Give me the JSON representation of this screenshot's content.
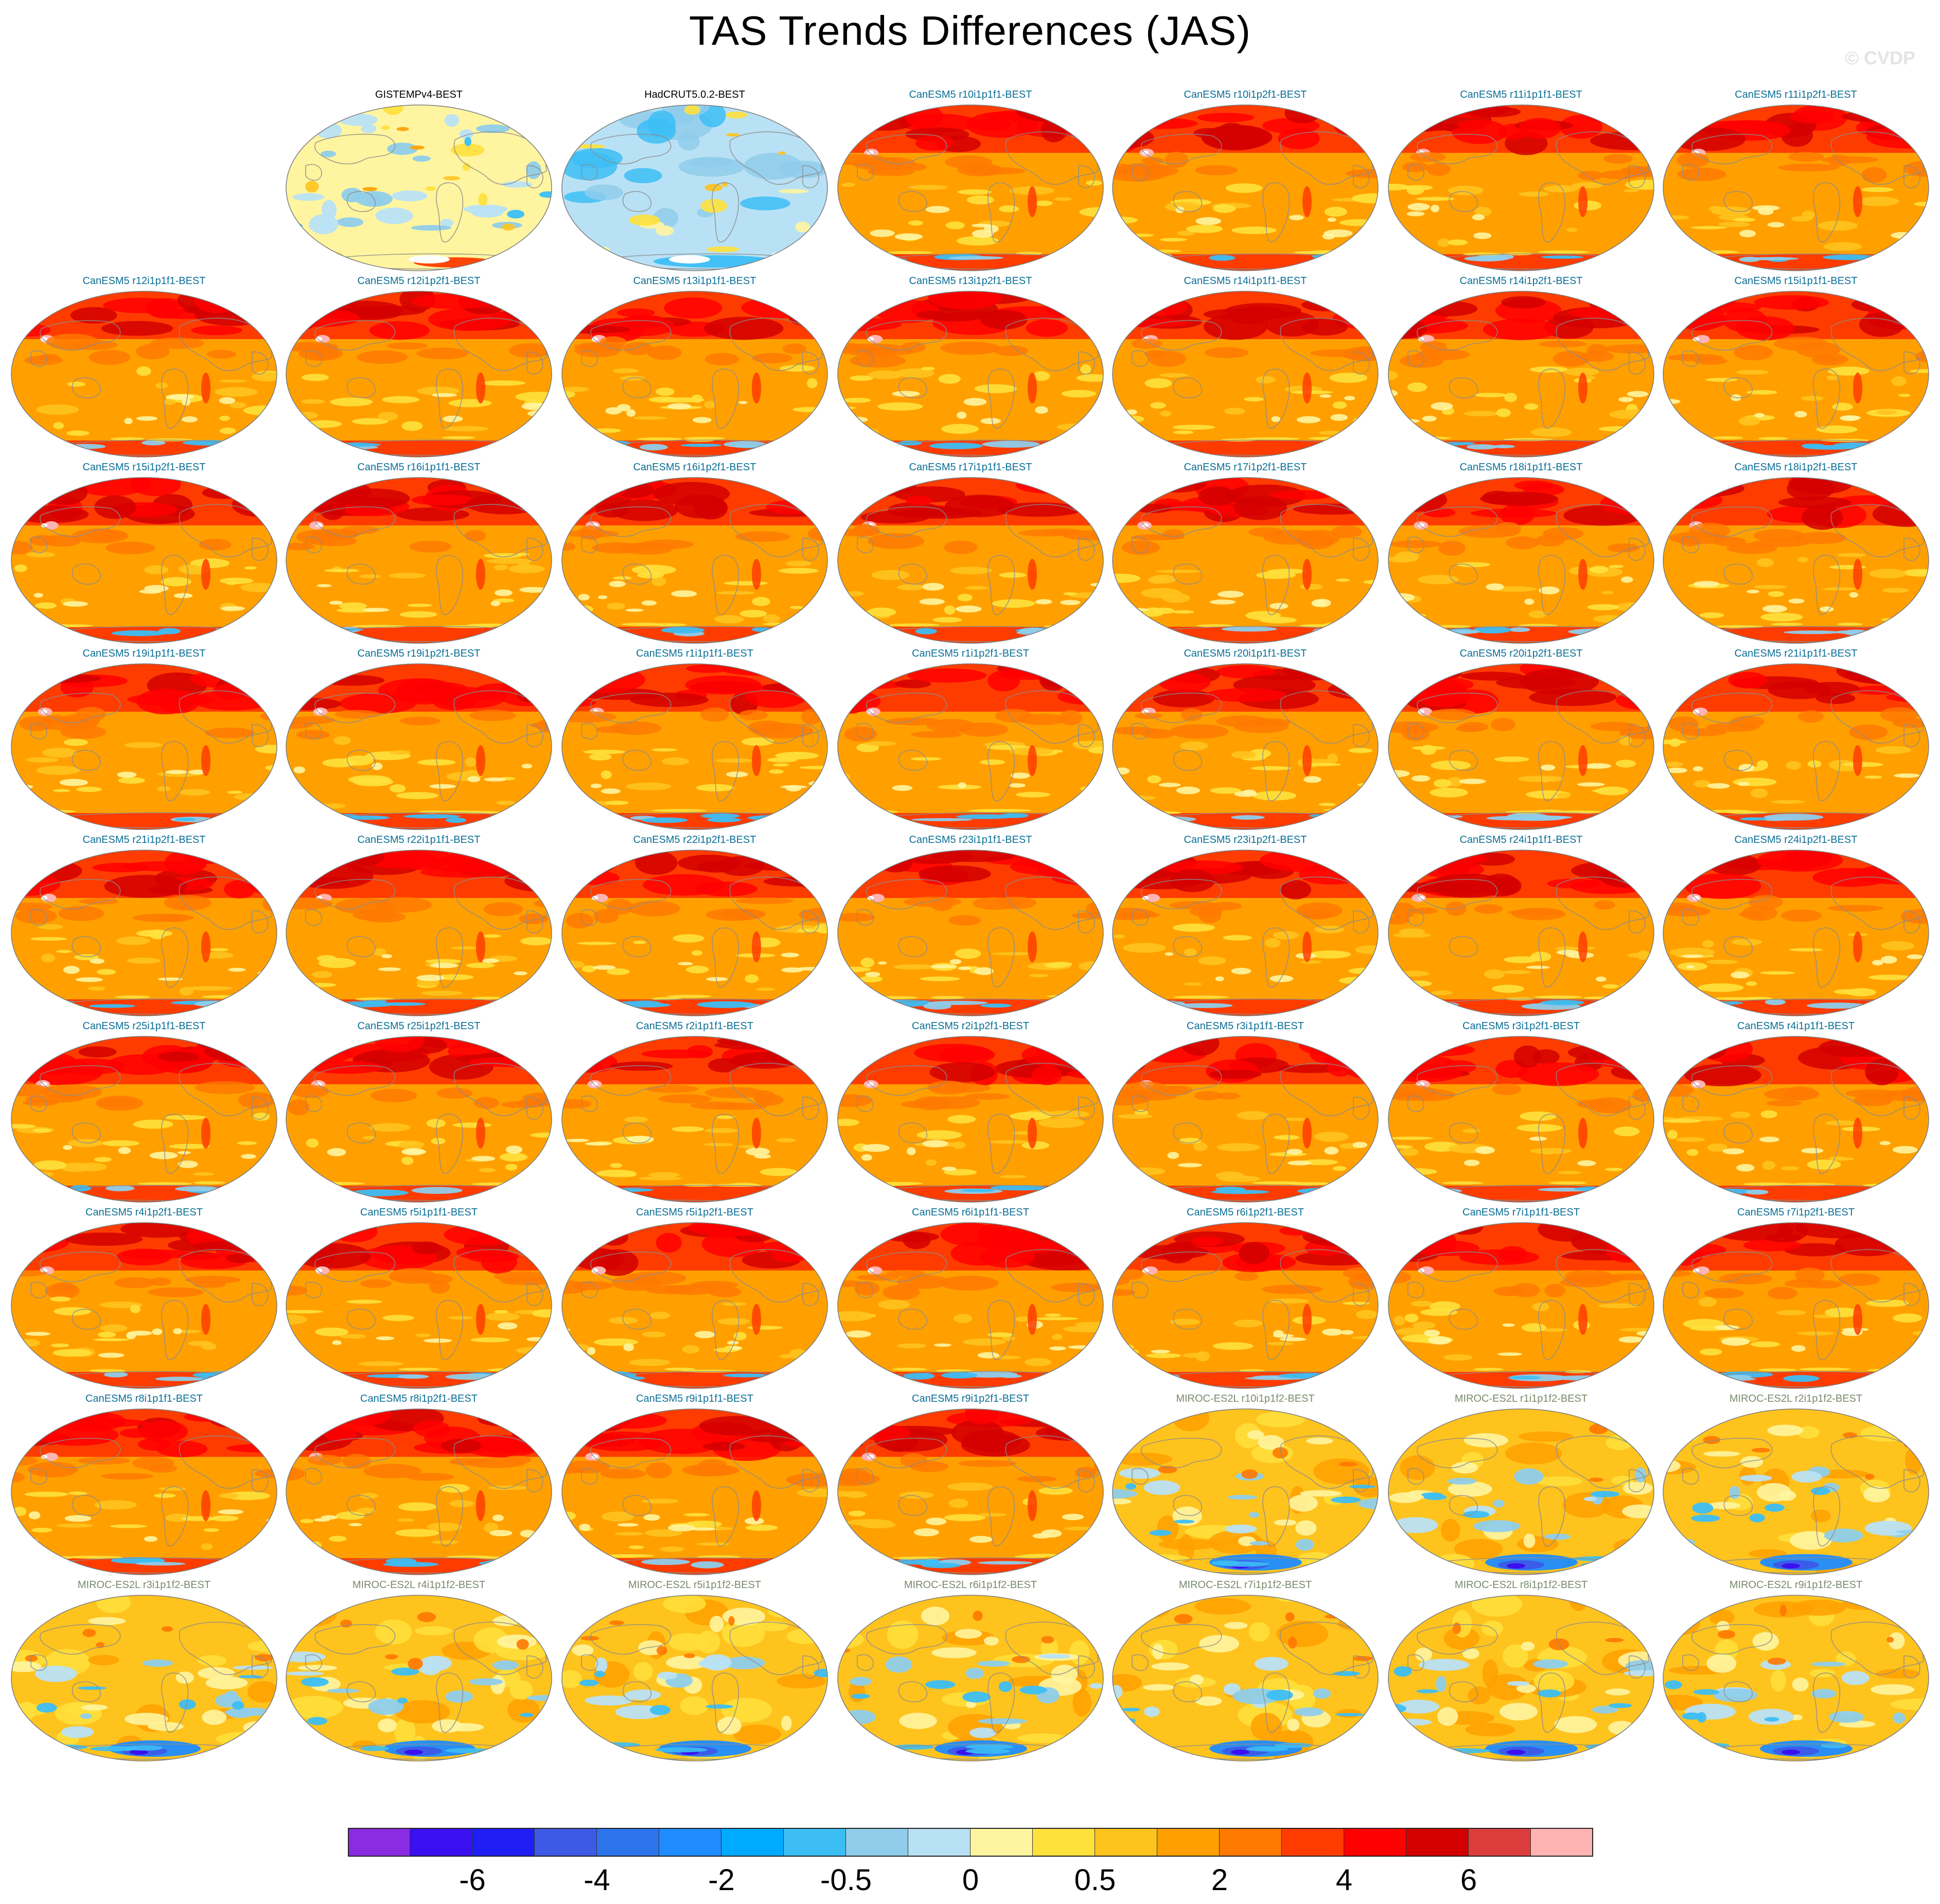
{
  "title": "TAS Trends Differences (JAS)",
  "watermark": "© CVDP",
  "colors": {
    "obs_title": "#000000",
    "canesm_title": "#0a6f96",
    "miroc_title": "#7a8a6c"
  },
  "panels": [
    {
      "label": "GISTEMPv4-BEST",
      "group": "obs_gistemp"
    },
    {
      "label": "HadCRUT5.0.2-BEST",
      "group": "obs_hadcrut"
    },
    {
      "label": "CanESM5 r10i1p1f1-BEST",
      "group": "canesm"
    },
    {
      "label": "CanESM5 r10i1p2f1-BEST",
      "group": "canesm"
    },
    {
      "label": "CanESM5 r11i1p1f1-BEST",
      "group": "canesm"
    },
    {
      "label": "CanESM5 r11i1p2f1-BEST",
      "group": "canesm"
    },
    {
      "label": "CanESM5 r12i1p1f1-BEST",
      "group": "canesm"
    },
    {
      "label": "CanESM5 r12i1p2f1-BEST",
      "group": "canesm"
    },
    {
      "label": "CanESM5 r13i1p1f1-BEST",
      "group": "canesm"
    },
    {
      "label": "CanESM5 r13i1p2f1-BEST",
      "group": "canesm"
    },
    {
      "label": "CanESM5 r14i1p1f1-BEST",
      "group": "canesm"
    },
    {
      "label": "CanESM5 r14i1p2f1-BEST",
      "group": "canesm"
    },
    {
      "label": "CanESM5 r15i1p1f1-BEST",
      "group": "canesm"
    },
    {
      "label": "CanESM5 r15i1p2f1-BEST",
      "group": "canesm"
    },
    {
      "label": "CanESM5 r16i1p1f1-BEST",
      "group": "canesm"
    },
    {
      "label": "CanESM5 r16i1p2f1-BEST",
      "group": "canesm"
    },
    {
      "label": "CanESM5 r17i1p1f1-BEST",
      "group": "canesm"
    },
    {
      "label": "CanESM5 r17i1p2f1-BEST",
      "group": "canesm"
    },
    {
      "label": "CanESM5 r18i1p1f1-BEST",
      "group": "canesm"
    },
    {
      "label": "CanESM5 r18i1p2f1-BEST",
      "group": "canesm"
    },
    {
      "label": "CanESM5 r19i1p1f1-BEST",
      "group": "canesm"
    },
    {
      "label": "CanESM5 r19i1p2f1-BEST",
      "group": "canesm"
    },
    {
      "label": "CanESM5 r1i1p1f1-BEST",
      "group": "canesm"
    },
    {
      "label": "CanESM5 r1i1p2f1-BEST",
      "group": "canesm"
    },
    {
      "label": "CanESM5 r20i1p1f1-BEST",
      "group": "canesm"
    },
    {
      "label": "CanESM5 r20i1p2f1-BEST",
      "group": "canesm"
    },
    {
      "label": "CanESM5 r21i1p1f1-BEST",
      "group": "canesm"
    },
    {
      "label": "CanESM5 r21i1p2f1-BEST",
      "group": "canesm"
    },
    {
      "label": "CanESM5 r22i1p1f1-BEST",
      "group": "canesm"
    },
    {
      "label": "CanESM5 r22i1p2f1-BEST",
      "group": "canesm"
    },
    {
      "label": "CanESM5 r23i1p1f1-BEST",
      "group": "canesm"
    },
    {
      "label": "CanESM5 r23i1p2f1-BEST",
      "group": "canesm"
    },
    {
      "label": "CanESM5 r24i1p1f1-BEST",
      "group": "canesm"
    },
    {
      "label": "CanESM5 r24i1p2f1-BEST",
      "group": "canesm"
    },
    {
      "label": "CanESM5 r25i1p1f1-BEST",
      "group": "canesm"
    },
    {
      "label": "CanESM5 r25i1p2f1-BEST",
      "group": "canesm"
    },
    {
      "label": "CanESM5 r2i1p1f1-BEST",
      "group": "canesm"
    },
    {
      "label": "CanESM5 r2i1p2f1-BEST",
      "group": "canesm"
    },
    {
      "label": "CanESM5 r3i1p1f1-BEST",
      "group": "canesm"
    },
    {
      "label": "CanESM5 r3i1p2f1-BEST",
      "group": "canesm"
    },
    {
      "label": "CanESM5 r4i1p1f1-BEST",
      "group": "canesm"
    },
    {
      "label": "CanESM5 r4i1p2f1-BEST",
      "group": "canesm"
    },
    {
      "label": "CanESM5 r5i1p1f1-BEST",
      "group": "canesm"
    },
    {
      "label": "CanESM5 r5i1p2f1-BEST",
      "group": "canesm"
    },
    {
      "label": "CanESM5 r6i1p1f1-BEST",
      "group": "canesm"
    },
    {
      "label": "CanESM5 r6i1p2f1-BEST",
      "group": "canesm"
    },
    {
      "label": "CanESM5 r7i1p1f1-BEST",
      "group": "canesm"
    },
    {
      "label": "CanESM5 r7i1p2f1-BEST",
      "group": "canesm"
    },
    {
      "label": "CanESM5 r8i1p1f1-BEST",
      "group": "canesm"
    },
    {
      "label": "CanESM5 r8i1p2f1-BEST",
      "group": "canesm"
    },
    {
      "label": "CanESM5 r9i1p1f1-BEST",
      "group": "canesm"
    },
    {
      "label": "CanESM5 r9i1p2f1-BEST",
      "group": "canesm"
    },
    {
      "label": "MIROC-ES2L r10i1p1f2-BEST",
      "group": "miroc"
    },
    {
      "label": "MIROC-ES2L r1i1p1f2-BEST",
      "group": "miroc"
    },
    {
      "label": "MIROC-ES2L r2i1p1f2-BEST",
      "group": "miroc"
    },
    {
      "label": "MIROC-ES2L r3i1p1f2-BEST",
      "group": "miroc"
    },
    {
      "label": "MIROC-ES2L r4i1p1f2-BEST",
      "group": "miroc"
    },
    {
      "label": "MIROC-ES2L r5i1p1f2-BEST",
      "group": "miroc"
    },
    {
      "label": "MIROC-ES2L r6i1p1f2-BEST",
      "group": "miroc"
    },
    {
      "label": "MIROC-ES2L r7i1p1f2-BEST",
      "group": "miroc"
    },
    {
      "label": "MIROC-ES2L r8i1p1f2-BEST",
      "group": "miroc"
    },
    {
      "label": "MIROC-ES2L r9i1p1f2-BEST",
      "group": "miroc"
    }
  ],
  "colorbar": {
    "colors": [
      "#8b2be2",
      "#3a0ff0",
      "#1e1ef5",
      "#3c5ae6",
      "#2d73eb",
      "#1e8cff",
      "#00aaff",
      "#3cbef5",
      "#8fcdeb",
      "#b9e1f5",
      "#fff5a0",
      "#ffe13c",
      "#ffc31e",
      "#ffa000",
      "#ff7800",
      "#ff3c00",
      "#ff0000",
      "#d20000",
      "#dc3c3c",
      "#ffb4b4"
    ],
    "labels": [
      "-6",
      "-4",
      "-2",
      "-0.5",
      "0",
      "0.5",
      "2",
      "4",
      "6"
    ]
  }
}
